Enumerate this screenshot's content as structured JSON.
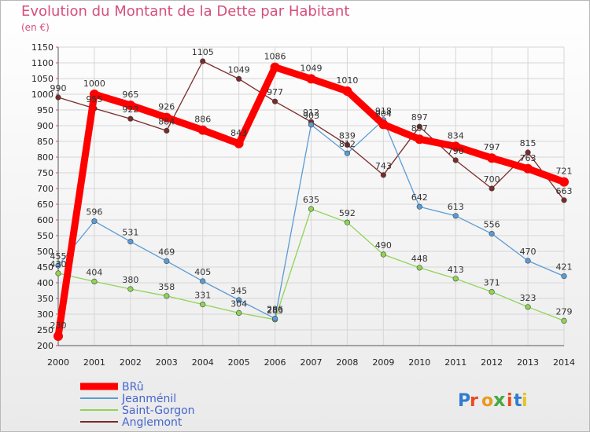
{
  "header": {
    "title": "Evolution du Montant de la Dette par Habitant",
    "subtitle": "(en €)"
  },
  "logo": {
    "text": "Proxiti"
  },
  "chart_data": {
    "type": "line",
    "title": "Evolution du Montant de la Dette par Habitant",
    "subtitle": "(en €)",
    "x": [
      2000,
      2001,
      2002,
      2003,
      2004,
      2005,
      2006,
      2007,
      2008,
      2009,
      2010,
      2011,
      2012,
      2013,
      2014
    ],
    "ylim": [
      200,
      1150
    ],
    "yticks": [
      200,
      250,
      300,
      350,
      400,
      450,
      500,
      550,
      600,
      650,
      700,
      750,
      800,
      850,
      900,
      950,
      1000,
      1050,
      1100,
      1150
    ],
    "grid": true,
    "legend_position": "bottom-left",
    "series": [
      {
        "name": "Anglemont",
        "color": "#7b2a2a",
        "values": [
          990,
          955,
          922,
          884,
          1105,
          1049,
          977,
          912,
          839,
          743,
          897,
          790,
          700,
          815,
          663
        ],
        "labels": [
          "990",
          "955",
          "922",
          "884",
          "1105",
          "1049",
          "977",
          "912",
          "839",
          "743",
          "897",
          "790",
          "700",
          "815",
          "663"
        ]
      },
      {
        "name": "Saint-Gorgon",
        "color": "#8fd456",
        "values": [
          430,
          404,
          380,
          358,
          331,
          304,
          283,
          635,
          592,
          490,
          448,
          413,
          371,
          323,
          279
        ],
        "labels": [
          "430",
          "404",
          "380",
          "358",
          "331",
          "304",
          "283",
          "635",
          "592",
          "490",
          "448",
          "413",
          "371",
          "323",
          "279"
        ]
      },
      {
        "name": "Jeanménil",
        "color": "#5b9bd5",
        "values": [
          455,
          596,
          531,
          469,
          405,
          345,
          286,
          903,
          812,
          918,
          642,
          613,
          556,
          470,
          421
        ],
        "labels": [
          "455",
          "596",
          "531",
          "469",
          "405",
          "345",
          "286",
          "903",
          "812",
          "918",
          "642",
          "613",
          "556",
          "470",
          "421"
        ]
      },
      {
        "name": "BRû",
        "color": "#ff0000",
        "values": [
          230,
          1000,
          965,
          926,
          886,
          843,
          1086,
          1049,
          1010,
          904,
          857,
          834,
          797,
          763,
          721
        ],
        "labels": [
          "230",
          "1000",
          "965",
          "926",
          "886",
          "843",
          "1086",
          "1049",
          "1010",
          "904",
          "857",
          "834",
          "797",
          "763",
          "721"
        ]
      }
    ],
    "legend_order": [
      "BRû",
      "Jeanménil",
      "Saint-Gorgon",
      "Anglemont"
    ]
  }
}
